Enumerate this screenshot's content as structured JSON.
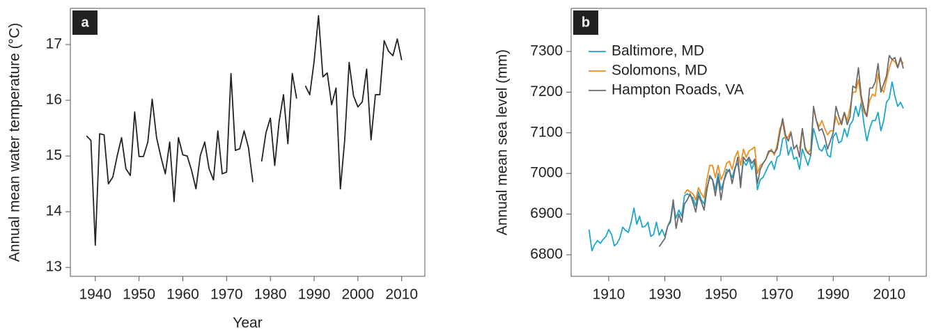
{
  "chart_data": [
    {
      "type": "line",
      "panel_label": "a",
      "x_label": "Year",
      "y_label": "Annual mean water temperature (°C)",
      "x": [
        1938,
        1939,
        1940,
        1941,
        1942,
        1943,
        1944,
        1945,
        1946,
        1947,
        1948,
        1949,
        1950,
        1951,
        1952,
        1953,
        1954,
        1955,
        1956,
        1957,
        1958,
        1959,
        1960,
        1961,
        1962,
        1963,
        1964,
        1965,
        1966,
        1967,
        1968,
        1969,
        1970,
        1971,
        1972,
        1973,
        1974,
        1975,
        1976,
        1977,
        1978,
        1979,
        1980,
        1981,
        1982,
        1983,
        1984,
        1985,
        1986,
        1987,
        1988,
        1989,
        1990,
        1991,
        1992,
        1993,
        1994,
        1995,
        1996,
        1997,
        1998,
        1999,
        2000,
        2001,
        2002,
        2003,
        2004,
        2005,
        2006,
        2007,
        2008,
        2009,
        2010
      ],
      "series": [
        {
          "color": "#222222",
          "values": [
            15.36,
            15.28,
            13.4,
            15.4,
            15.38,
            14.5,
            14.62,
            15.0,
            15.33,
            14.77,
            14.65,
            15.79,
            14.99,
            14.99,
            15.25,
            16.02,
            15.33,
            14.98,
            14.68,
            15.25,
            14.18,
            15.33,
            15.02,
            15.0,
            14.74,
            14.41,
            15.01,
            15.25,
            14.77,
            14.57,
            15.45,
            14.68,
            14.71,
            16.48,
            15.1,
            15.13,
            15.45,
            15.15,
            14.53,
            null,
            14.9,
            15.42,
            15.68,
            14.83,
            15.62,
            16.1,
            15.22,
            16.48,
            16.03,
            null,
            16.26,
            16.1,
            16.7,
            17.52,
            16.42,
            16.49,
            15.92,
            16.22,
            14.41,
            15.3,
            16.68,
            16.08,
            15.88,
            15.97,
            16.56,
            15.29,
            16.1,
            16.1,
            17.07,
            16.88,
            16.8,
            17.1,
            16.72
          ]
        }
      ],
      "xlim": [
        1934.3,
        2015.3
      ],
      "xticks": [
        1940,
        1950,
        1960,
        1970,
        1980,
        1990,
        2000,
        2010
      ],
      "ylim": [
        12.84,
        17.65
      ],
      "yticks": [
        13,
        14,
        15,
        16,
        17
      ]
    },
    {
      "type": "line",
      "panel_label": "b",
      "y_label": "Annual mean sea level (mm)",
      "legend": "upper left",
      "x": [
        1903,
        1904,
        1905,
        1906,
        1907,
        1908,
        1909,
        1910,
        1911,
        1912,
        1913,
        1914,
        1915,
        1916,
        1917,
        1918,
        1919,
        1920,
        1921,
        1922,
        1923,
        1924,
        1925,
        1926,
        1927,
        1928,
        1929,
        1930,
        1931,
        1932,
        1933,
        1934,
        1935,
        1936,
        1937,
        1938,
        1939,
        1940,
        1941,
        1942,
        1943,
        1944,
        1945,
        1946,
        1947,
        1948,
        1949,
        1950,
        1951,
        1952,
        1953,
        1954,
        1955,
        1956,
        1957,
        1958,
        1959,
        1960,
        1961,
        1962,
        1963,
        1964,
        1965,
        1966,
        1967,
        1968,
        1969,
        1970,
        1971,
        1972,
        1973,
        1974,
        1975,
        1976,
        1977,
        1978,
        1979,
        1980,
        1981,
        1982,
        1983,
        1984,
        1985,
        1986,
        1987,
        1988,
        1989,
        1990,
        1991,
        1992,
        1993,
        1994,
        1995,
        1996,
        1997,
        1998,
        1999,
        2000,
        2001,
        2002,
        2003,
        2004,
        2005,
        2006,
        2007,
        2008,
        2009,
        2010,
        2011,
        2012,
        2013,
        2014,
        2015
      ],
      "series": [
        {
          "name": "Baltimore, MD",
          "color": "#1aa6d0",
          "values": [
            6862,
            6810,
            6825,
            6835,
            6828,
            6838,
            6845,
            6862,
            6850,
            6822,
            6828,
            6842,
            6868,
            6860,
            6855,
            6880,
            6915,
            6875,
            6895,
            6868,
            6870,
            6880,
            6845,
            6850,
            6880,
            6848,
            6862,
            6845,
            6870,
            6880,
            6925,
            6890,
            6910,
            6895,
            6945,
            6950,
            6945,
            6940,
            6920,
            6955,
            6935,
            6925,
            6965,
            6990,
            6985,
            6960,
            7000,
            6960,
            6980,
            7010,
            7005,
            6990,
            7015,
            7025,
            6980,
            7030,
            7020,
            7035,
            7010,
            7030,
            6960,
            6985,
            6990,
            7005,
            7020,
            7030,
            7010,
            7040,
            7045,
            7085,
            7090,
            7045,
            7065,
            7035,
            7040,
            7010,
            7060,
            7040,
            7020,
            7045,
            7110,
            7085,
            7060,
            7055,
            7070,
            7045,
            7040,
            7090,
            7100,
            7075,
            7080,
            7110,
            7090,
            7120,
            7130,
            7165,
            7140,
            7175,
            7120,
            7080,
            7110,
            7130,
            7130,
            7150,
            7105,
            7130,
            7175,
            7185,
            7225,
            7190,
            7165,
            7175,
            7160
          ]
        },
        {
          "name": "Solomons, MD",
          "color": "#f08c1e",
          "values": [
            null,
            null,
            null,
            null,
            null,
            null,
            null,
            null,
            null,
            null,
            null,
            null,
            null,
            null,
            null,
            null,
            null,
            null,
            null,
            null,
            null,
            null,
            null,
            null,
            null,
            null,
            null,
            null,
            null,
            null,
            null,
            null,
            null,
            null,
            6950,
            6960,
            6955,
            6950,
            6935,
            6965,
            6950,
            6940,
            6985,
            7020,
            7020,
            6990,
            7020,
            6985,
            7000,
            7025,
            7030,
            7010,
            7040,
            7055,
            7020,
            7060,
            7040,
            7055,
            7060,
            7065,
            7000,
            7020,
            7025,
            7035,
            7050,
            7060,
            7045,
            7070,
            7110,
            7125,
            7085,
            7090,
            7105,
            null,
            null,
            7060,
            7110,
            7065,
            7050,
            7060,
            7160,
            7130,
            7115,
            7130,
            7110,
            7095,
            7105,
            7105,
            7140,
            7120,
            7130,
            7150,
            7130,
            7160,
            7200,
            7200,
            7230,
            7180,
            7150,
            7140,
            7180,
            7195,
            7190,
            7245,
            7210,
            7200,
            7230,
            7260,
            7280,
            7275,
            7260,
            7280,
            7270
          ]
        },
        {
          "name": "Hampton Roads, VA",
          "color": "#6b6b6b",
          "values": [
            null,
            null,
            null,
            null,
            null,
            null,
            null,
            null,
            null,
            null,
            null,
            null,
            null,
            null,
            null,
            null,
            null,
            null,
            null,
            null,
            null,
            null,
            null,
            null,
            null,
            6820,
            6830,
            6840,
            6870,
            6885,
            6935,
            6865,
            6900,
            6880,
            6925,
            6935,
            6950,
            6930,
            6905,
            6945,
            6930,
            6910,
            6960,
            6995,
            6985,
            6945,
            6990,
            6935,
            6980,
            7000,
            7010,
            6975,
            7010,
            7040,
            6965,
            7040,
            7030,
            7040,
            7025,
            7035,
            6975,
            7010,
            7025,
            7035,
            7055,
            7055,
            7050,
            7060,
            7100,
            7135,
            7095,
            7080,
            7100,
            7060,
            7070,
            7040,
            7110,
            7060,
            7050,
            7045,
            7165,
            7130,
            7105,
            7110,
            7090,
            7060,
            7080,
            7100,
            7165,
            7140,
            7120,
            7150,
            7120,
            7140,
            7215,
            7210,
            7260,
            7190,
            7160,
            7140,
            7210,
            7210,
            7225,
            7270,
            7200,
            7220,
            7240,
            7290,
            7280,
            7285,
            7260,
            7285,
            7258
          ]
        }
      ],
      "xlim": [
        1896.6,
        2023.2
      ],
      "xticks": [
        1910,
        1930,
        1950,
        1970,
        1990,
        2010
      ],
      "ylim": [
        6747,
        7406
      ],
      "yticks": [
        6800,
        6900,
        7000,
        7100,
        7200,
        7300
      ]
    }
  ]
}
